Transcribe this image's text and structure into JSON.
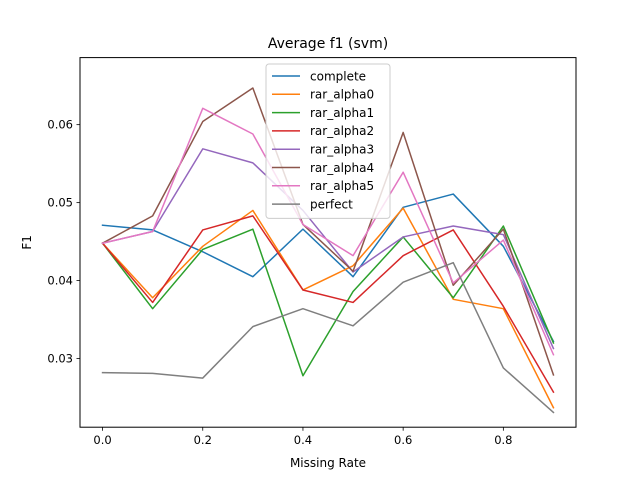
{
  "chart_data": {
    "type": "line",
    "title": "Average f1 (svm)",
    "xlabel": "Missing Rate",
    "ylabel": "F1",
    "x": [
      0.0,
      0.1,
      0.2,
      0.3,
      0.4,
      0.5,
      0.6,
      0.7,
      0.8,
      0.9
    ],
    "xlim": [
      -0.045,
      0.945
    ],
    "ylim": [
      0.0212,
      0.0686
    ],
    "xticks": [
      0.0,
      0.2,
      0.4,
      0.6,
      0.8
    ],
    "xtick_labels": [
      "0.0",
      "0.2",
      "0.4",
      "0.6",
      "0.8"
    ],
    "yticks": [
      0.03,
      0.04,
      0.05,
      0.06
    ],
    "ytick_labels": [
      "0.03",
      "0.04",
      "0.05",
      "0.06"
    ],
    "grid": false,
    "legend_position": "top-center",
    "series": [
      {
        "name": "complete",
        "color": "#1f77b4",
        "values": [
          0.0471,
          0.0465,
          0.0437,
          0.0405,
          0.0466,
          0.0405,
          0.0494,
          0.0511,
          0.0444,
          0.0322
        ]
      },
      {
        "name": "rar_alpha0",
        "color": "#ff7f0e",
        "values": [
          0.0448,
          0.0378,
          0.0444,
          0.049,
          0.0388,
          0.0419,
          0.0493,
          0.0376,
          0.0364,
          0.0237
        ]
      },
      {
        "name": "rar_alpha1",
        "color": "#2ca02c",
        "values": [
          0.0448,
          0.0364,
          0.044,
          0.0466,
          0.0278,
          0.0386,
          0.0456,
          0.0378,
          0.047,
          0.032
        ]
      },
      {
        "name": "rar_alpha2",
        "color": "#d62728",
        "values": [
          0.0448,
          0.0372,
          0.0465,
          0.0483,
          0.0388,
          0.0372,
          0.0432,
          0.0465,
          0.0367,
          0.0257
        ]
      },
      {
        "name": "rar_alpha3",
        "color": "#9467bd",
        "values": [
          0.0448,
          0.0463,
          0.0569,
          0.0551,
          0.049,
          0.0411,
          0.0456,
          0.047,
          0.0459,
          0.0313
        ]
      },
      {
        "name": "rar_alpha4",
        "color": "#8c564b",
        "values": [
          0.0448,
          0.0483,
          0.0604,
          0.0647,
          0.0472,
          0.0412,
          0.059,
          0.0394,
          0.0466,
          0.0279
        ]
      },
      {
        "name": "rar_alpha5",
        "color": "#e377c2",
        "values": [
          0.0448,
          0.0463,
          0.0621,
          0.0588,
          0.0472,
          0.0432,
          0.0539,
          0.0397,
          0.0452,
          0.0305
        ]
      },
      {
        "name": "perfect",
        "color": "#7f7f7f",
        "values": [
          0.0282,
          0.0281,
          0.0275,
          0.0341,
          0.0364,
          0.0342,
          0.0398,
          0.0423,
          0.0288,
          0.0231
        ]
      }
    ]
  }
}
